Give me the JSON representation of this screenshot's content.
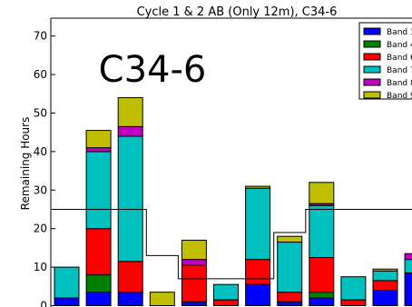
{
  "chart_data": {
    "type": "bar",
    "stacked": true,
    "title": "Cycle 1 & 2 AB (Only 12m), C34-6",
    "annotation": "C34-6",
    "ylabel": "Remaining Hours",
    "ylim": [
      0,
      75
    ],
    "yticks": [
      0,
      10,
      20,
      30,
      40,
      50,
      60,
      70
    ],
    "series": [
      {
        "name": "Band 3",
        "color": "#0000ff",
        "values": [
          2,
          3.5,
          3.5,
          0,
          1,
          0,
          5.5,
          1,
          2,
          0,
          4,
          8.5
        ]
      },
      {
        "name": "Band 4",
        "color": "#008000",
        "values": [
          0,
          4.5,
          0,
          0,
          0,
          0,
          0,
          0,
          1.5,
          0,
          0,
          0
        ]
      },
      {
        "name": "Band 6",
        "color": "#ff0000",
        "values": [
          0,
          12,
          8,
          0,
          9.5,
          1.5,
          6.5,
          2.5,
          9,
          1.5,
          2.5,
          0
        ]
      },
      {
        "name": "Band 7",
        "color": "#00bfbf",
        "values": [
          8,
          20,
          32.5,
          0,
          0,
          4,
          18.5,
          13,
          13.5,
          6,
          2.5,
          3.5
        ]
      },
      {
        "name": "Band 8",
        "color": "#bf00bf",
        "values": [
          0,
          1,
          2.5,
          0,
          1.5,
          0,
          0,
          0,
          0.5,
          0,
          0,
          1.5
        ]
      },
      {
        "name": "Band 9",
        "color": "#bfbf00",
        "values": [
          0,
          4.5,
          7.5,
          3.5,
          5,
          0,
          0.5,
          1.5,
          5.5,
          0,
          0.5,
          0
        ]
      }
    ],
    "step_line": {
      "color": "#000000",
      "values": [
        25,
        25,
        25,
        13,
        7,
        7,
        7,
        19,
        25,
        25,
        25,
        25
      ]
    },
    "legend_position": "top-right",
    "legend_visible_labels": [
      "Band 3",
      "Band 4",
      "Band 6",
      "Band 7",
      "Band 8",
      "Band 9"
    ],
    "legend_labels": [
      "Band 3",
      "Band 4",
      "Band 6",
      "Band 7",
      "Band 8",
      "Band 9"
    ]
  }
}
